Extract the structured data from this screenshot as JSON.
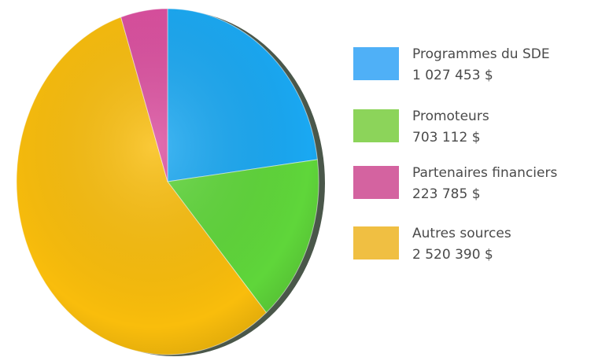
{
  "chart_data": {
    "type": "pie",
    "categories": [
      "Programmes du SDE",
      "Promoteurs",
      "Partenaires financiers",
      "Autres sources"
    ],
    "values": [
      1027453,
      703112,
      223785,
      2520390
    ],
    "value_labels": [
      "1 027 453 $",
      "703 112 $",
      "223 785 $",
      "2 520 390 $"
    ],
    "colors": [
      "#1aa8f2",
      "#5fd63a",
      "#db4f9f",
      "#f9bd0c"
    ],
    "legend_colors": [
      "#4fb0f7",
      "#8cd45a",
      "#d463a0",
      "#f0bf42"
    ],
    "legend": "right"
  }
}
